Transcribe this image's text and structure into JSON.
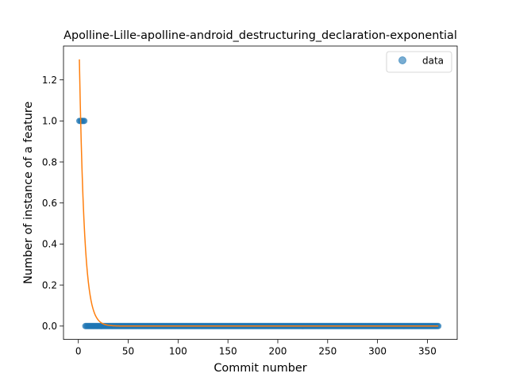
{
  "chart_data": {
    "type": "scatter",
    "title": "Apolline-Lille-apolline-android_destructuring_declaration-exponential",
    "xlabel": "Commit number",
    "ylabel": "Number of instance of a feature",
    "xlim": [
      -14.9,
      379.9
    ],
    "ylim": [
      -0.065,
      1.365
    ],
    "xticks": [
      0,
      50,
      100,
      150,
      200,
      250,
      300,
      350
    ],
    "xtick_labels": [
      "0",
      "50",
      "100",
      "150",
      "200",
      "250",
      "300",
      "350"
    ],
    "yticks": [
      0.0,
      0.2,
      0.4,
      0.6,
      0.8,
      1.0,
      1.2
    ],
    "ytick_labels": [
      "0.0",
      "0.2",
      "0.4",
      "0.6",
      "0.8",
      "1.0",
      "1.2"
    ],
    "grid": false,
    "legend": {
      "position": "top-right",
      "entries": [
        "data"
      ]
    },
    "series": [
      {
        "name": "data",
        "kind": "points",
        "color": "#1f77b4",
        "alpha": 0.6,
        "segments": [
          {
            "x_start": 1,
            "x_end": 6,
            "y": 1
          },
          {
            "x_start": 7,
            "x_end": 361,
            "y": 0
          }
        ]
      },
      {
        "kind": "fit_line",
        "color": "#ff7f0e",
        "model": "exponential",
        "a": 1.3,
        "b": 0.2,
        "x_start": 1,
        "x_end": 361
      }
    ]
  }
}
